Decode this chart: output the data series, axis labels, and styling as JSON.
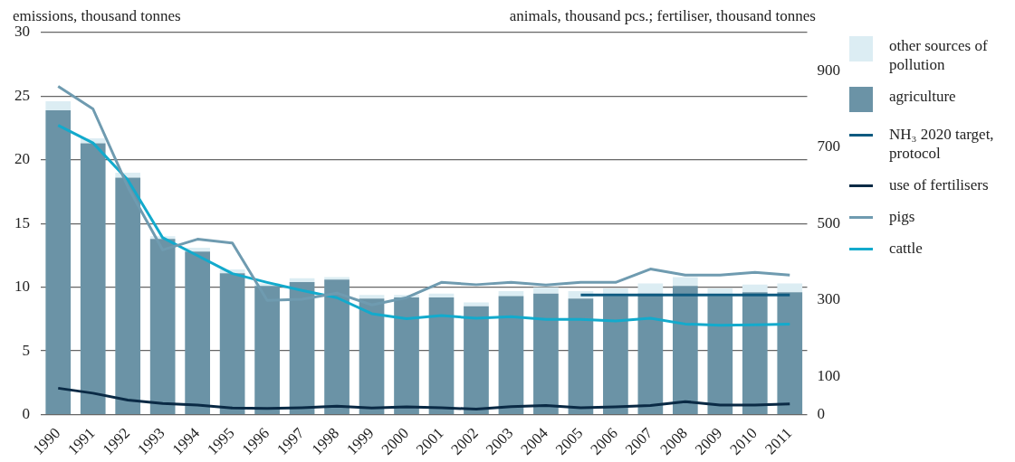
{
  "chart_data": {
    "type": "bar",
    "ylabel": "emissions, thousand tonnes",
    "y2label": "animals, thousand pcs.; fertiliser, thousand tonnes",
    "categories": [
      "1990",
      "1991",
      "1992",
      "1993",
      "1994",
      "1995",
      "1996",
      "1997",
      "1998",
      "1999",
      "2000",
      "2001",
      "2002",
      "2003",
      "2004",
      "2005",
      "2006",
      "2007",
      "2008",
      "2009",
      "2010",
      "2011"
    ],
    "series": [
      {
        "name": "agriculture",
        "color": "#6b93a6",
        "values": [
          23.9,
          21.3,
          18.6,
          13.8,
          12.8,
          11.1,
          10.1,
          10.4,
          10.6,
          9.1,
          9.2,
          9.2,
          8.5,
          9.3,
          9.5,
          9.1,
          9.3,
          9.5,
          10.1,
          9.3,
          9.6,
          9.6
        ]
      },
      {
        "name": "other sources of pollution",
        "color": "#dcedf3",
        "values": [
          0.7,
          0.4,
          0.4,
          0.2,
          0.3,
          0.3,
          0.2,
          0.3,
          0.2,
          0.3,
          0.2,
          0.3,
          0.3,
          0.4,
          0.5,
          0.6,
          0.6,
          0.8,
          0.7,
          0.6,
          0.6,
          0.7
        ]
      },
      {
        "name": "NH₃ 2020 target, protocol",
        "type": "line",
        "color": "#0e5a80",
        "values": [
          null,
          null,
          null,
          null,
          null,
          null,
          null,
          null,
          null,
          null,
          null,
          null,
          null,
          null,
          null,
          9.4,
          9.4,
          9.4,
          9.4,
          9.4,
          9.4,
          9.4
        ]
      },
      {
        "name": "use of fertilisers",
        "type": "line",
        "axis": "y2",
        "color": "#0a2a45",
        "values": [
          69,
          56,
          38,
          29,
          25,
          17,
          16,
          18,
          22,
          17,
          20,
          18,
          14,
          21,
          24,
          18,
          20,
          24,
          34,
          25,
          25,
          28
        ]
      },
      {
        "name": "pigs",
        "type": "line",
        "axis": "y2",
        "color": "#6f9bb0",
        "values": [
          859,
          800,
          596,
          431,
          459,
          449,
          299,
          302,
          318,
          287,
          306,
          346,
          340,
          346,
          339,
          346,
          346,
          381,
          365,
          365,
          372,
          365
        ]
      },
      {
        "name": "cattle",
        "type": "line",
        "axis": "y2",
        "color": "#13aacc",
        "values": [
          757,
          711,
          614,
          463,
          416,
          369,
          346,
          325,
          306,
          264,
          251,
          259,
          252,
          256,
          249,
          249,
          245,
          252,
          237,
          234,
          235,
          237
        ]
      }
    ],
    "stacked": true,
    "ylim": [
      0,
      30
    ],
    "yticks": [
      0,
      5,
      10,
      15,
      20,
      25,
      30
    ],
    "y2lim": [
      0,
      1000
    ],
    "y2ticks": [
      0,
      100,
      300,
      500,
      700,
      900
    ],
    "grid": "y",
    "legend": "right"
  }
}
